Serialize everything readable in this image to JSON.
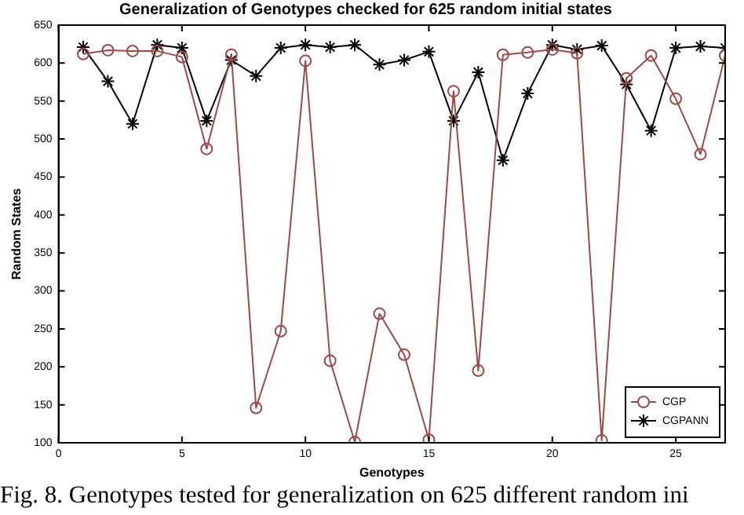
{
  "chart_data": {
    "type": "line",
    "title": "Generalization of Genotypes checked for 625 random initial states",
    "xlabel": "Genotypes",
    "ylabel": "Random States",
    "x": [
      1,
      2,
      3,
      4,
      5,
      6,
      7,
      8,
      9,
      10,
      11,
      12,
      13,
      14,
      15,
      16,
      17,
      18,
      19,
      20,
      21,
      22,
      23,
      24,
      25,
      26,
      27
    ],
    "series": [
      {
        "name": "CGP",
        "color": "#a04848",
        "marker": "circle",
        "values": [
          612,
          617,
          616,
          616,
          608,
          487,
          611,
          146,
          247,
          603,
          208,
          101,
          270,
          216,
          104,
          563,
          195,
          611,
          614,
          618,
          613,
          103,
          580,
          610,
          553,
          480,
          610
        ]
      },
      {
        "name": "CGPANN",
        "color": "#000000",
        "marker": "cross",
        "values": [
          621,
          576,
          520,
          624,
          620,
          524,
          604,
          583,
          620,
          624,
          621,
          624,
          598,
          604,
          615,
          524,
          588,
          472,
          560,
          624,
          618,
          623,
          572,
          511,
          620,
          622,
          620
        ]
      }
    ],
    "xlim": [
      0,
      27
    ],
    "xticks": [
      0,
      5,
      10,
      15,
      20,
      25
    ],
    "ylim": [
      100,
      650
    ],
    "yticks": [
      100,
      150,
      200,
      250,
      300,
      350,
      400,
      450,
      500,
      550,
      600,
      650
    ],
    "grid": false,
    "legend": "bottom right",
    "line_style": "solid",
    "annotations": [
      "Fig. 8.   Genotypes tested for generalization on 625 different random ini"
    ]
  }
}
